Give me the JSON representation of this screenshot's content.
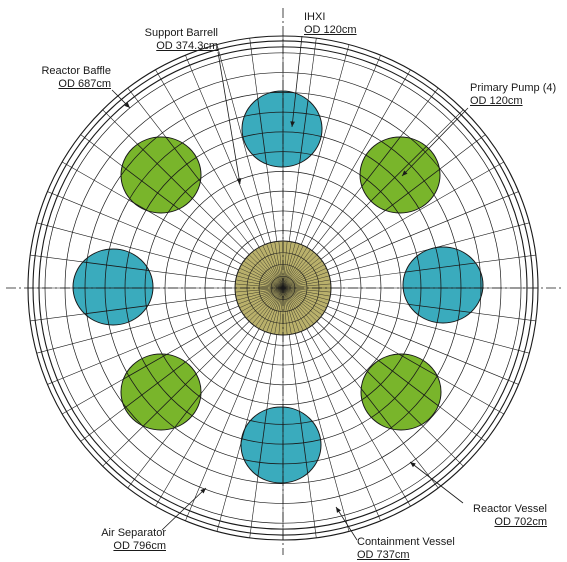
{
  "labels": {
    "support_barrel": {
      "name": "Support Barrell",
      "od": "OD 374.3cm"
    },
    "ihxi": {
      "name": "IHXI",
      "od": "OD 120cm"
    },
    "reactor_baffle": {
      "name": "Reactor Baffle",
      "od": "OD 687cm"
    },
    "primary_pump": {
      "name": "Primary Pump (4)",
      "od": "OD 120cm"
    },
    "reactor_vessel": {
      "name": "Reactor Vessel",
      "od": "OD 702cm"
    },
    "air_separator": {
      "name": "Air Separator",
      "od": "OD 796cm"
    },
    "containment_vessel": {
      "name": "Containment  Vessel",
      "od": "OD 737cm"
    }
  },
  "colors": {
    "ihx_fill": "#3aabbd",
    "pump_fill": "#79b52b",
    "core_fill": "#b9b06b",
    "line": "#1a1a1a"
  }
}
